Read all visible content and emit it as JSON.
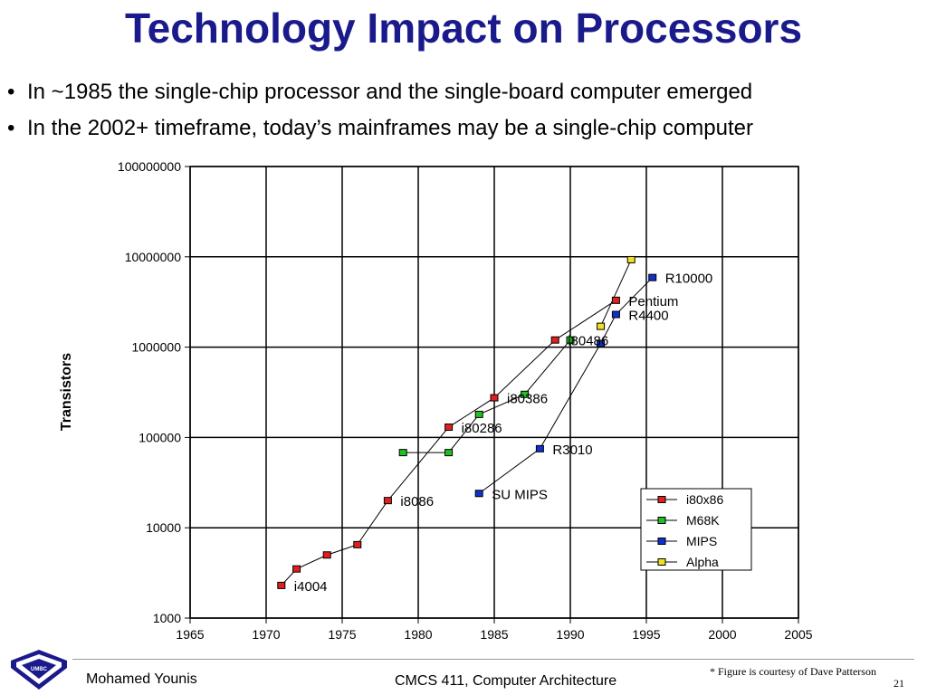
{
  "slide": {
    "title": "Technology Impact on Processors",
    "bullets": [
      "In ~1985 the single-chip processor and the single-board computer emerged",
      "In the 2002+ timeframe, today’s mainframes may be a single-chip computer"
    ],
    "author": "Mohamed Younis",
    "course": "CMCS 411, Computer Architecture",
    "credit": "* Figure is courtesy of Dave Patterson",
    "page_number": "21"
  },
  "colors": {
    "title": "#1a1a8c",
    "i80x86": "#e02020",
    "M68K": "#20c020",
    "MIPS": "#1030d0",
    "Alpha": "#f0e020"
  },
  "chart_data": {
    "type": "line",
    "title": "",
    "xlabel": "",
    "ylabel": "Transistors",
    "y_scale": "log",
    "xlim": [
      1965,
      2005
    ],
    "ylim": [
      1000,
      100000000
    ],
    "x_ticks": [
      "1965",
      "1970",
      "1975",
      "1980",
      "1985",
      "1990",
      "1995",
      "2000",
      "2005"
    ],
    "y_ticks": [
      "1000",
      "10000",
      "100000",
      "1000000",
      "10000000",
      "100000000"
    ],
    "grid": true,
    "legend_position": "bottom-right",
    "series": [
      {
        "name": "i80x86",
        "color": "#e02020",
        "points": [
          [
            1971,
            2300
          ],
          [
            1972,
            3500
          ],
          [
            1974,
            5000
          ],
          [
            1976,
            6500
          ],
          [
            1978,
            20000
          ],
          [
            1982,
            130000
          ],
          [
            1985,
            275000
          ],
          [
            1989,
            1200000
          ],
          [
            1993,
            3300000
          ]
        ]
      },
      {
        "name": "M68K",
        "color": "#20c020",
        "points": [
          [
            1979,
            68000
          ],
          [
            1982,
            68000
          ],
          [
            1984,
            180000
          ],
          [
            1987,
            300000
          ],
          [
            1990,
            1200000
          ]
        ]
      },
      {
        "name": "MIPS",
        "color": "#1030d0",
        "points": [
          [
            1984,
            24000
          ],
          [
            1988,
            75000
          ],
          [
            1992,
            1100000
          ],
          [
            1993,
            2300000
          ],
          [
            1995.4,
            5900000
          ]
        ]
      },
      {
        "name": "Alpha",
        "color": "#f0e020",
        "points": [
          [
            1992,
            1700000
          ],
          [
            1994,
            9300000
          ]
        ]
      }
    ],
    "annotations": [
      {
        "text": "i4004",
        "x": 1971,
        "y": 2300
      },
      {
        "text": "i8086",
        "x": 1978,
        "y": 20000
      },
      {
        "text": "i80286",
        "x": 1982,
        "y": 130000
      },
      {
        "text": "i80386",
        "x": 1985,
        "y": 275000
      },
      {
        "text": "i80486",
        "x": 1989,
        "y": 1200000
      },
      {
        "text": "Pentium",
        "x": 1993,
        "y": 3300000
      },
      {
        "text": "SU MIPS",
        "x": 1984,
        "y": 24000
      },
      {
        "text": "R3010",
        "x": 1988,
        "y": 75000
      },
      {
        "text": "R4400",
        "x": 1993,
        "y": 2300000
      },
      {
        "text": "R10000",
        "x": 1995.4,
        "y": 5900000
      }
    ]
  }
}
